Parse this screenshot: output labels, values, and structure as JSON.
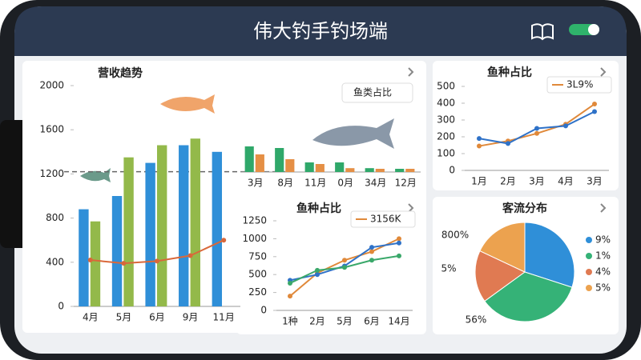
{
  "header": {
    "title": "伟大钓手钓场端"
  },
  "panels": [
    {
      "type": "bar",
      "title": "营收趋势",
      "categories": [
        "4月",
        "5月",
        "6月",
        "9月",
        "11月"
      ],
      "ylim": [
        0,
        2000
      ],
      "yticks": [
        0,
        400,
        800,
        1200,
        1600,
        2000
      ],
      "reference_line": 1220,
      "series": [
        {
          "type": "bar",
          "color": "#2f8fd8",
          "values": [
            880,
            1000,
            1300,
            1460,
            1400
          ]
        },
        {
          "type": "bar",
          "color": "#93b94a",
          "values": [
            770,
            1350,
            1460,
            1520,
            null
          ]
        },
        {
          "type": "line",
          "color": "#d9683a",
          "values": [
            420,
            390,
            410,
            460,
            600
          ]
        }
      ]
    },
    {
      "type": "bar",
      "title": "鱼类占比",
      "categories": [
        "3月",
        "8月",
        "11月",
        "0月",
        "34月",
        "12月"
      ],
      "ylim": [
        0,
        100
      ],
      "series": [
        {
          "type": "bar",
          "color": "#2fa86a",
          "values": [
            80,
            75,
            30,
            30,
            12,
            10
          ]
        },
        {
          "type": "bar",
          "color": "#e58f45",
          "values": [
            55,
            40,
            25,
            12,
            10,
            10
          ]
        }
      ]
    },
    {
      "type": "line",
      "title": "鱼种占比",
      "categories": [
        "1月",
        "2月",
        "3月",
        "4月",
        "3月"
      ],
      "ylim": [
        0,
        500
      ],
      "yticks": [
        0,
        100,
        200,
        300,
        400,
        500
      ],
      "series": [
        {
          "type": "line",
          "name": "3L9%",
          "color": "#e0893a",
          "values": [
            145,
            175,
            220,
            275,
            395
          ]
        },
        {
          "type": "line",
          "color": "#2f72c8",
          "values": [
            190,
            160,
            250,
            265,
            350
          ]
        }
      ]
    },
    {
      "type": "line",
      "title": "鱼种占比",
      "categories": [
        "1种",
        "2月",
        "5月",
        "6月",
        "14月"
      ],
      "ylim": [
        0,
        1250
      ],
      "yticks": [
        0,
        250,
        500,
        750,
        1000,
        1250
      ],
      "series": [
        {
          "type": "line",
          "name": "3156K",
          "color": "#e0893a",
          "values": [
            200,
            520,
            700,
            820,
            1000
          ]
        },
        {
          "type": "line",
          "color": "#2f72c8",
          "values": [
            420,
            500,
            620,
            880,
            940
          ]
        },
        {
          "type": "line",
          "color": "#3aa86a",
          "values": [
            380,
            560,
            600,
            700,
            760
          ]
        }
      ]
    },
    {
      "type": "pie",
      "title": "客流分布",
      "categories": [
        "9%",
        "1%",
        "4%",
        "5%"
      ],
      "values": [
        30,
        35,
        17,
        18
      ],
      "colors": [
        "#2f8fd8",
        "#35b277",
        "#e07a52",
        "#eca24f"
      ],
      "annotations": [
        "800%",
        "5%",
        "56%"
      ]
    }
  ]
}
